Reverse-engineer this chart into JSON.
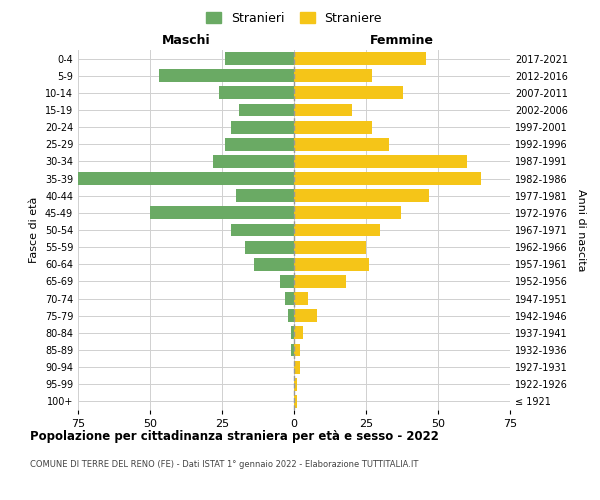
{
  "age_groups": [
    "100+",
    "95-99",
    "90-94",
    "85-89",
    "80-84",
    "75-79",
    "70-74",
    "65-69",
    "60-64",
    "55-59",
    "50-54",
    "45-49",
    "40-44",
    "35-39",
    "30-34",
    "25-29",
    "20-24",
    "15-19",
    "10-14",
    "5-9",
    "0-4"
  ],
  "birth_years": [
    "≤ 1921",
    "1922-1926",
    "1927-1931",
    "1932-1936",
    "1937-1941",
    "1942-1946",
    "1947-1951",
    "1952-1956",
    "1957-1961",
    "1962-1966",
    "1967-1971",
    "1972-1976",
    "1977-1981",
    "1982-1986",
    "1987-1991",
    "1992-1996",
    "1997-2001",
    "2002-2006",
    "2007-2011",
    "2012-2016",
    "2017-2021"
  ],
  "maschi": [
    0,
    0,
    0,
    1,
    1,
    2,
    3,
    5,
    14,
    17,
    22,
    50,
    20,
    75,
    28,
    24,
    22,
    19,
    26,
    47,
    24
  ],
  "femmine": [
    1,
    1,
    2,
    2,
    3,
    8,
    5,
    18,
    26,
    25,
    30,
    37,
    47,
    65,
    60,
    33,
    27,
    20,
    38,
    27,
    46
  ],
  "male_color": "#6aaa64",
  "female_color": "#f5c518",
  "bar_height": 0.75,
  "xlim": 75,
  "title": "Popolazione per cittadinanza straniera per età e sesso - 2022",
  "subtitle": "COMUNE DI TERRE DEL RENO (FE) - Dati ISTAT 1° gennaio 2022 - Elaborazione TUTTITALIA.IT",
  "xlabel_left": "Maschi",
  "xlabel_right": "Femmine",
  "ylabel_left": "Fasce di età",
  "ylabel_right": "Anni di nascita",
  "legend_male": "Stranieri",
  "legend_female": "Straniere",
  "bg_color": "#ffffff",
  "grid_color": "#d0d0d0",
  "dashed_color": "#999999"
}
